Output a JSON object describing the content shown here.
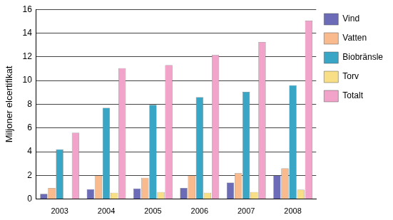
{
  "chart_data": {
    "type": "bar",
    "y_label": "Miljoner elcertifikat",
    "categories": [
      "2003",
      "2004",
      "2005",
      "2006",
      "2007",
      "2008"
    ],
    "series": [
      {
        "name": "Vind",
        "color": "#6b6bb8",
        "values": [
          0.45,
          0.85,
          0.9,
          0.95,
          1.4,
          2.0
        ]
      },
      {
        "name": "Vatten",
        "color": "#f9bb8e",
        "values": [
          0.95,
          2.0,
          1.8,
          2.0,
          2.2,
          2.6
        ]
      },
      {
        "name": "Biobränsle",
        "color": "#3aa6c6",
        "values": [
          4.2,
          7.7,
          7.95,
          8.6,
          9.05,
          9.6
        ]
      },
      {
        "name": "Torv",
        "color": "#f8df86",
        "values": [
          null,
          0.55,
          0.6,
          0.55,
          0.6,
          0.8
        ]
      },
      {
        "name": "Totalt",
        "color": "#f2a3c9",
        "values": [
          5.6,
          11.05,
          11.3,
          12.15,
          13.25,
          15.05
        ]
      }
    ],
    "ylim": [
      0,
      16
    ],
    "yticks": [
      0,
      2,
      4,
      6,
      8,
      10,
      12,
      14,
      16
    ],
    "grid": true,
    "legend": "right"
  }
}
